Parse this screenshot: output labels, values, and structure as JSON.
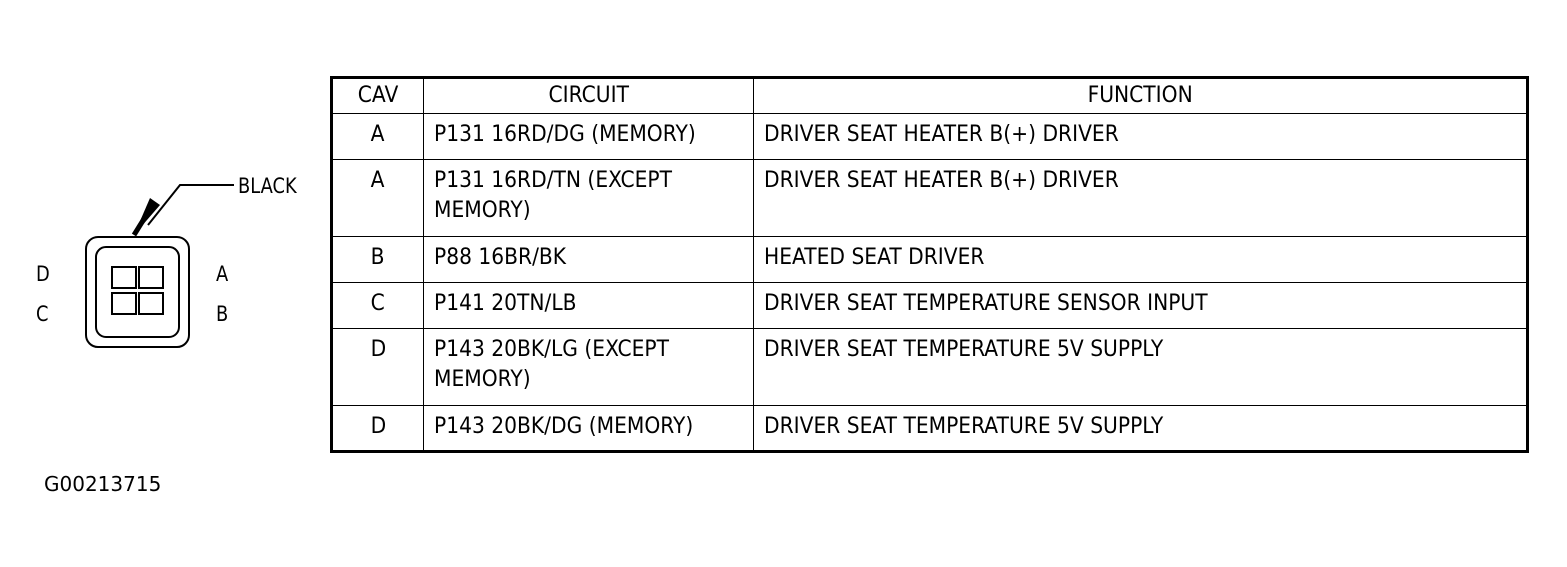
{
  "connector": {
    "color_label": "BLACK",
    "pin_labels": {
      "top_left": "D",
      "bottom_left": "C",
      "top_right": "A",
      "bottom_right": "B"
    }
  },
  "table": {
    "headers": [
      "CAV",
      "CIRCUIT",
      "FUNCTION"
    ],
    "rows": [
      {
        "cav": "A",
        "circuit": "P131 16RD/DG (MEMORY)",
        "function": "DRIVER SEAT HEATER B(+) DRIVER"
      },
      {
        "cav": "A",
        "circuit": "P131 16RD/TN (EXCEPT MEMORY)",
        "function": "DRIVER SEAT HEATER B(+) DRIVER"
      },
      {
        "cav": "B",
        "circuit": "P88 16BR/BK",
        "function": "HEATED SEAT DRIVER"
      },
      {
        "cav": "C",
        "circuit": "P141 20TN/LB",
        "function": "DRIVER SEAT TEMPERATURE SENSOR INPUT"
      },
      {
        "cav": "D",
        "circuit": "P143 20BK/LG (EXCEPT MEMORY)",
        "function": "DRIVER SEAT TEMPERATURE 5V SUPPLY"
      },
      {
        "cav": "D",
        "circuit": "P143 20BK/DG (MEMORY)",
        "function": "DRIVER SEAT TEMPERATURE 5V SUPPLY"
      }
    ]
  },
  "figure_id": "G00213715"
}
